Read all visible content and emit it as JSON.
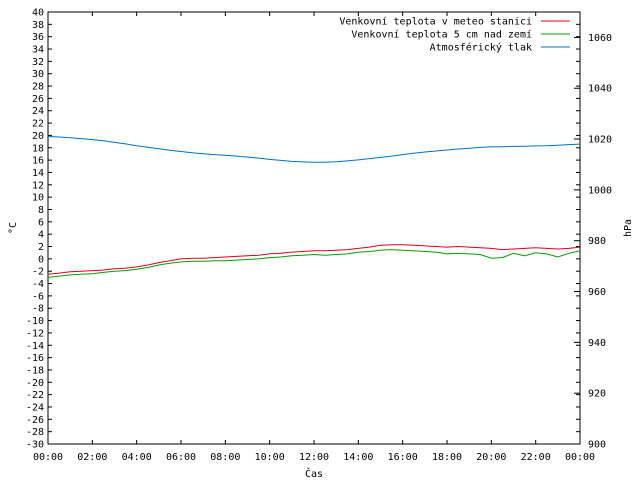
{
  "chart_data": {
    "type": "line",
    "xlabel": "Čas",
    "ylabel": "°C",
    "y2label": "hPa",
    "xticks": [
      "00:00",
      "02:00",
      "04:00",
      "06:00",
      "08:00",
      "10:00",
      "12:00",
      "14:00",
      "16:00",
      "18:00",
      "20:00",
      "22:00",
      "00:00"
    ],
    "xlim": [
      0,
      24
    ],
    "ylim": [
      -30,
      40
    ],
    "y2lim": [
      900,
      1070
    ],
    "yticks": [
      -30,
      -28,
      -26,
      -24,
      -22,
      -20,
      -18,
      -16,
      -14,
      -12,
      -10,
      -8,
      -6,
      -4,
      -2,
      0,
      2,
      4,
      6,
      8,
      10,
      12,
      14,
      16,
      18,
      20,
      22,
      24,
      26,
      28,
      30,
      32,
      34,
      36,
      38,
      40
    ],
    "y2ticks": [
      900,
      920,
      940,
      960,
      980,
      1000,
      1020,
      1040,
      1060
    ],
    "legend_position": "top-right",
    "grid": false,
    "series": [
      {
        "name": "Venkovní teplota v meteo stanici",
        "color": "#e3001b",
        "axis": "left",
        "x": [
          0,
          0.5,
          1,
          1.5,
          2,
          2.5,
          3,
          3.5,
          4,
          4.5,
          5,
          5.5,
          6,
          6.5,
          7,
          7.5,
          8,
          8.5,
          9,
          9.5,
          10,
          10.5,
          11,
          11.5,
          12,
          12.5,
          13,
          13.5,
          14,
          14.5,
          15,
          15.5,
          16,
          16.5,
          17,
          17.5,
          18,
          18.5,
          19,
          19.5,
          20,
          20.5,
          21,
          21.5,
          22,
          22.5,
          23,
          23.5,
          24
        ],
        "values": [
          -2.5,
          -2.3,
          -2.1,
          -2.0,
          -1.9,
          -1.8,
          -1.6,
          -1.5,
          -1.3,
          -1.0,
          -0.6,
          -0.3,
          0.0,
          0.1,
          0.1,
          0.2,
          0.3,
          0.4,
          0.5,
          0.6,
          0.8,
          0.9,
          1.1,
          1.2,
          1.3,
          1.3,
          1.4,
          1.5,
          1.7,
          1.9,
          2.2,
          2.3,
          2.3,
          2.2,
          2.1,
          2.0,
          1.9,
          2.0,
          1.9,
          1.8,
          1.7,
          1.5,
          1.6,
          1.7,
          1.8,
          1.7,
          1.6,
          1.7,
          1.9
        ]
      },
      {
        "name": "Venkovní teplota 5 cm nad zemí",
        "color": "#00a000",
        "axis": "left",
        "x": [
          0,
          0.5,
          1,
          1.5,
          2,
          2.5,
          3,
          3.5,
          4,
          4.5,
          5,
          5.5,
          6,
          6.5,
          7,
          7.5,
          8,
          8.5,
          9,
          9.5,
          10,
          10.5,
          11,
          11.5,
          12,
          12.5,
          13,
          13.5,
          14,
          14.5,
          15,
          15.5,
          16,
          16.5,
          17,
          17.5,
          18,
          18.5,
          19,
          19.5,
          20,
          20.5,
          21,
          21.5,
          22,
          22.5,
          23,
          23.5,
          24
        ],
        "values": [
          -3.0,
          -2.8,
          -2.6,
          -2.5,
          -2.4,
          -2.2,
          -2.0,
          -1.9,
          -1.7,
          -1.4,
          -1.0,
          -0.7,
          -0.5,
          -0.4,
          -0.4,
          -0.3,
          -0.3,
          -0.2,
          -0.1,
          0.0,
          0.2,
          0.3,
          0.5,
          0.6,
          0.7,
          0.6,
          0.7,
          0.8,
          1.1,
          1.2,
          1.4,
          1.5,
          1.4,
          1.3,
          1.2,
          1.1,
          0.8,
          0.9,
          0.8,
          0.7,
          0.1,
          0.2,
          0.9,
          0.5,
          1.0,
          0.8,
          0.3,
          0.9,
          1.3
        ]
      },
      {
        "name": "Atmosférický tlak",
        "color": "#0070cc",
        "axis": "right",
        "x": [
          0,
          0.5,
          1,
          1.5,
          2,
          2.5,
          3,
          3.5,
          4,
          4.5,
          5,
          5.5,
          6,
          6.5,
          7,
          7.5,
          8,
          8.5,
          9,
          9.5,
          10,
          10.5,
          11,
          11.5,
          12,
          12.5,
          13,
          13.5,
          14,
          14.5,
          15,
          15.5,
          16,
          16.5,
          17,
          17.5,
          18,
          18.5,
          19,
          19.5,
          20,
          20.5,
          21,
          21.5,
          22,
          22.5,
          23,
          23.5,
          24
        ],
        "values": [
          1021.0,
          1020.8,
          1020.5,
          1020.2,
          1019.8,
          1019.3,
          1018.7,
          1018.1,
          1017.4,
          1016.8,
          1016.2,
          1015.6,
          1015.1,
          1014.6,
          1014.2,
          1013.9,
          1013.6,
          1013.3,
          1012.9,
          1012.5,
          1012.0,
          1011.6,
          1011.2,
          1011.0,
          1010.9,
          1010.9,
          1011.1,
          1011.4,
          1011.8,
          1012.3,
          1012.8,
          1013.3,
          1013.9,
          1014.4,
          1014.9,
          1015.3,
          1015.7,
          1016.1,
          1016.4,
          1016.7,
          1016.9,
          1017.0,
          1017.1,
          1017.2,
          1017.3,
          1017.4,
          1017.6,
          1017.8,
          1018.0
        ]
      }
    ]
  }
}
